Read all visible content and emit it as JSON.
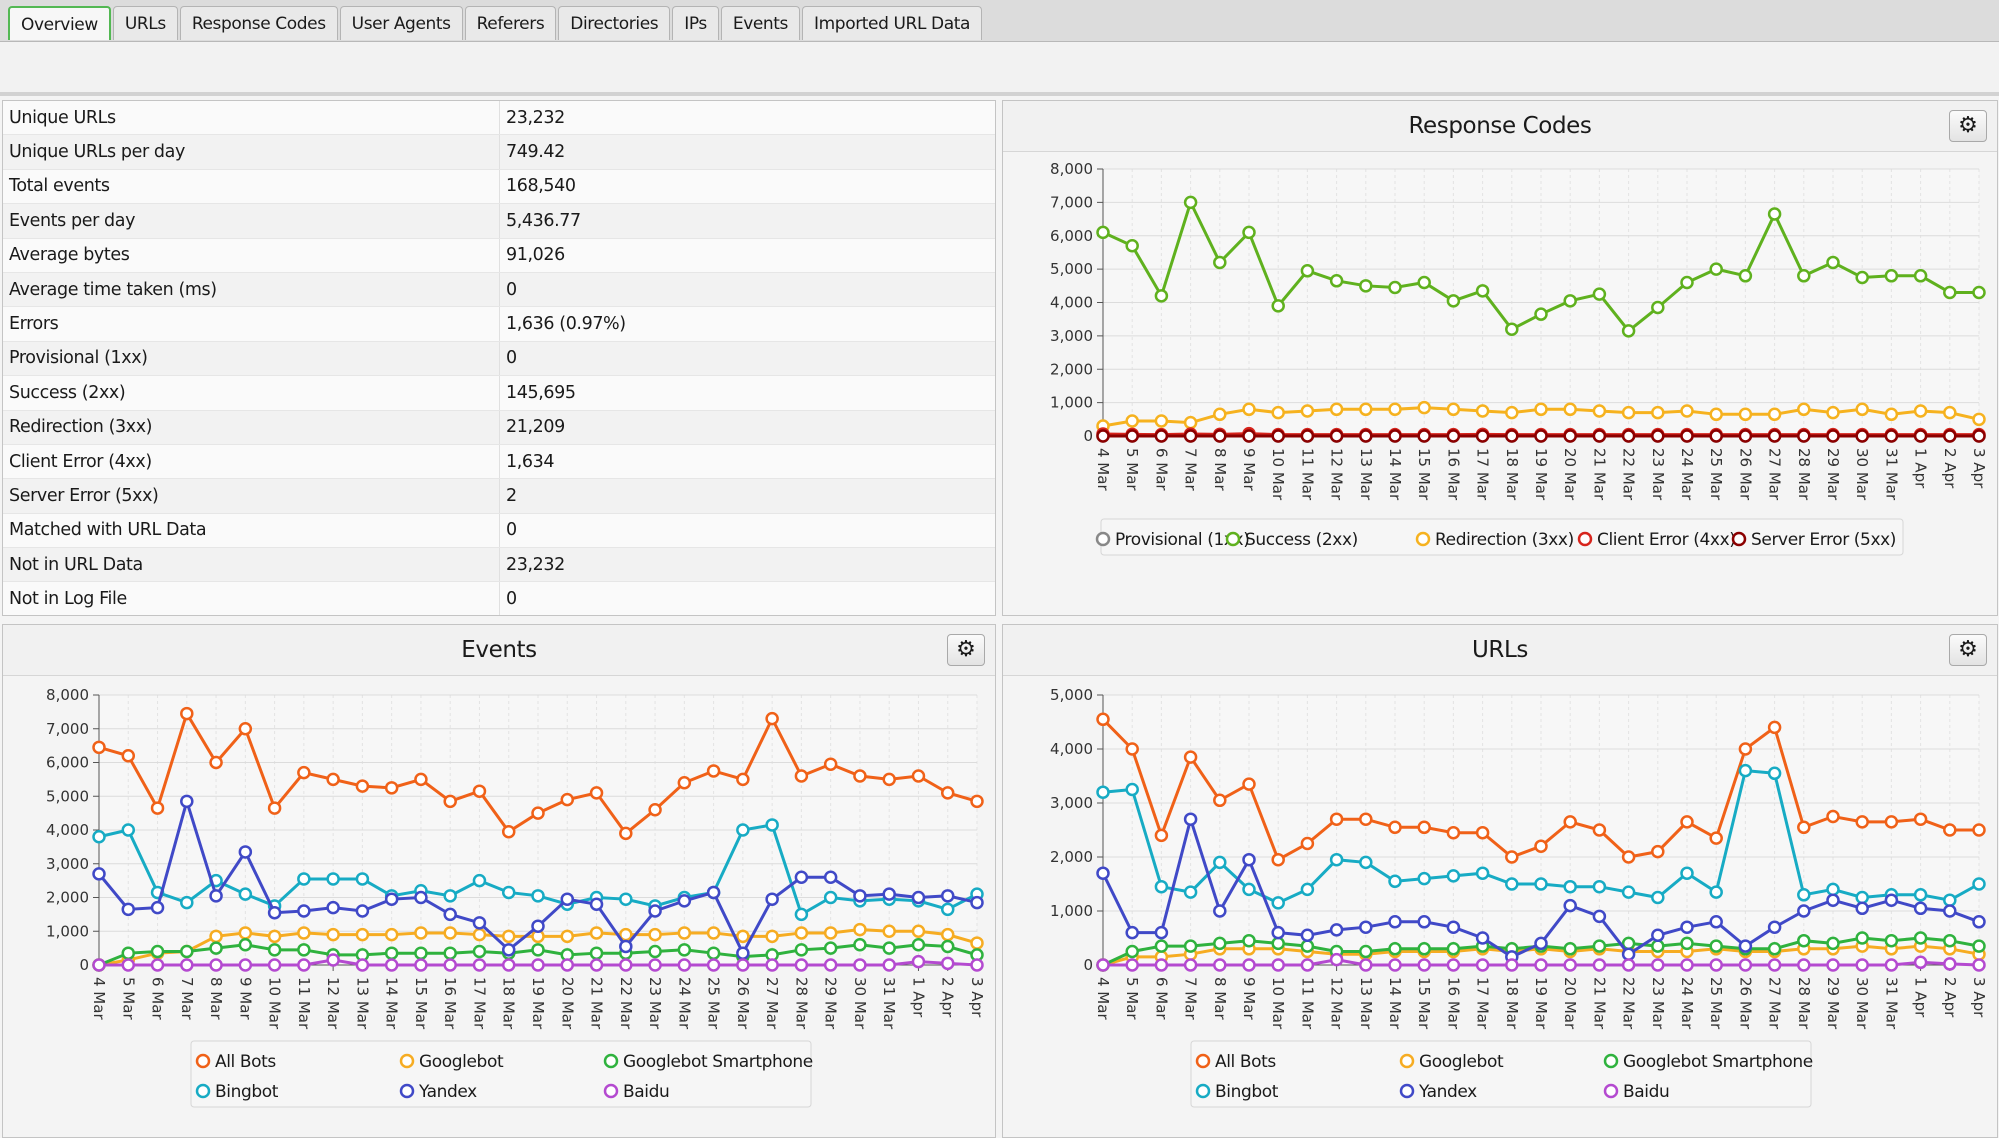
{
  "tabs": [
    {
      "label": "Overview",
      "active": true
    },
    {
      "label": "URLs"
    },
    {
      "label": "Response Codes"
    },
    {
      "label": "User Agents"
    },
    {
      "label": "Referers"
    },
    {
      "label": "Directories"
    },
    {
      "label": "IPs"
    },
    {
      "label": "Events"
    },
    {
      "label": "Imported URL Data"
    }
  ],
  "stats": [
    {
      "label": "Unique URLs",
      "value": "23,232"
    },
    {
      "label": "Unique URLs per day",
      "value": "749.42"
    },
    {
      "label": "Total events",
      "value": "168,540"
    },
    {
      "label": "Events per day",
      "value": "5,436.77"
    },
    {
      "label": "Average bytes",
      "value": "91,026"
    },
    {
      "label": "Average time taken (ms)",
      "value": "0"
    },
    {
      "label": "Errors",
      "value": "1,636 (0.97%)"
    },
    {
      "label": "Provisional (1xx)",
      "value": "0"
    },
    {
      "label": "Success (2xx)",
      "value": "145,695"
    },
    {
      "label": "Redirection (3xx)",
      "value": "21,209"
    },
    {
      "label": "Client Error (4xx)",
      "value": "1,634"
    },
    {
      "label": "Server Error (5xx)",
      "value": "2"
    },
    {
      "label": "Matched with URL Data",
      "value": "0"
    },
    {
      "label": "Not in URL Data",
      "value": "23,232"
    },
    {
      "label": "Not in Log File",
      "value": "0"
    }
  ],
  "gear_icon": "gear-icon",
  "chart_data": [
    {
      "id": "response-codes",
      "type": "line",
      "title": "Response Codes",
      "x": [
        "4 Mar",
        "5 Mar",
        "6 Mar",
        "7 Mar",
        "8 Mar",
        "9 Mar",
        "10 Mar",
        "11 Mar",
        "12 Mar",
        "13 Mar",
        "14 Mar",
        "15 Mar",
        "16 Mar",
        "17 Mar",
        "18 Mar",
        "19 Mar",
        "20 Mar",
        "21 Mar",
        "22 Mar",
        "23 Mar",
        "24 Mar",
        "25 Mar",
        "26 Mar",
        "27 Mar",
        "28 Mar",
        "29 Mar",
        "30 Mar",
        "31 Mar",
        "1 Apr",
        "2 Apr",
        "3 Apr"
      ],
      "ylim": [
        0,
        8000
      ],
      "yticks": [
        "0",
        "1,000",
        "2,000",
        "3,000",
        "4,000",
        "5,000",
        "6,000",
        "7,000",
        "8,000"
      ],
      "grid": true,
      "legend": "bottom",
      "series": [
        {
          "name": "Provisional (1xx)",
          "color": "#888888",
          "values": [
            0,
            0,
            0,
            0,
            0,
            0,
            0,
            0,
            0,
            0,
            0,
            0,
            0,
            0,
            0,
            0,
            0,
            0,
            0,
            0,
            0,
            0,
            0,
            0,
            0,
            0,
            0,
            0,
            0,
            0,
            0
          ]
        },
        {
          "name": "Success (2xx)",
          "color": "#5fb11e",
          "values": [
            6100,
            5700,
            4200,
            7000,
            5200,
            6100,
            3900,
            4950,
            4650,
            4500,
            4450,
            4600,
            4050,
            4350,
            3200,
            3650,
            4050,
            4250,
            3150,
            3850,
            4600,
            5000,
            4800,
            6650,
            4800,
            5200,
            4750,
            4800,
            4800,
            4300,
            4300
          ]
        },
        {
          "name": "Redirection (3xx)",
          "color": "#f6b21f",
          "values": [
            300,
            450,
            450,
            400,
            650,
            800,
            700,
            750,
            800,
            800,
            800,
            850,
            800,
            750,
            700,
            800,
            800,
            750,
            700,
            700,
            750,
            650,
            650,
            650,
            800,
            700,
            800,
            650,
            750,
            700,
            500
          ]
        },
        {
          "name": "Client Error (4xx)",
          "color": "#d7241c",
          "values": [
            60,
            50,
            40,
            60,
            50,
            70,
            40,
            40,
            40,
            40,
            40,
            40,
            40,
            50,
            40,
            40,
            40,
            40,
            40,
            40,
            40,
            40,
            40,
            40,
            40,
            40,
            40,
            40,
            40,
            40,
            40
          ]
        },
        {
          "name": "Server Error (5xx)",
          "color": "#8b0000",
          "values": [
            0,
            0,
            0,
            0,
            0,
            0,
            0,
            0,
            0,
            0,
            0,
            0,
            0,
            0,
            0,
            0,
            0,
            0,
            0,
            0,
            0,
            0,
            0,
            0,
            0,
            0,
            0,
            0,
            0,
            0,
            0
          ]
        }
      ]
    },
    {
      "id": "events",
      "type": "line",
      "title": "Events",
      "x": [
        "4 Mar",
        "5 Mar",
        "6 Mar",
        "7 Mar",
        "8 Mar",
        "9 Mar",
        "10 Mar",
        "11 Mar",
        "12 Mar",
        "13 Mar",
        "14 Mar",
        "15 Mar",
        "16 Mar",
        "17 Mar",
        "18 Mar",
        "19 Mar",
        "20 Mar",
        "21 Mar",
        "22 Mar",
        "23 Mar",
        "24 Mar",
        "25 Mar",
        "26 Mar",
        "27 Mar",
        "28 Mar",
        "29 Mar",
        "30 Mar",
        "31 Mar",
        "1 Apr",
        "2 Apr",
        "3 Apr"
      ],
      "ylim": [
        0,
        8000
      ],
      "yticks": [
        "0",
        "1,000",
        "2,000",
        "3,000",
        "4,000",
        "5,000",
        "6,000",
        "7,000",
        "8,000"
      ],
      "grid": true,
      "legend": "bottom",
      "series": [
        {
          "name": "All Bots",
          "color": "#f06118",
          "values": [
            6450,
            6200,
            4650,
            7450,
            6000,
            7000,
            4650,
            5700,
            5500,
            5300,
            5250,
            5500,
            4850,
            5150,
            3950,
            4500,
            4900,
            5100,
            3900,
            4600,
            5400,
            5750,
            5500,
            7300,
            5600,
            5950,
            5600,
            5500,
            5600,
            5100,
            4850
          ]
        },
        {
          "name": "Googlebot",
          "color": "#f6ac22",
          "values": [
            0,
            150,
            350,
            400,
            850,
            950,
            850,
            950,
            900,
            900,
            900,
            950,
            950,
            900,
            850,
            850,
            850,
            950,
            900,
            900,
            950,
            950,
            850,
            850,
            950,
            950,
            1050,
            1000,
            1000,
            900,
            650
          ]
        },
        {
          "name": "Googlebot Smartphone",
          "color": "#2fb23e",
          "values": [
            0,
            350,
            400,
            400,
            500,
            600,
            450,
            450,
            300,
            300,
            350,
            350,
            350,
            400,
            350,
            450,
            300,
            350,
            350,
            400,
            450,
            350,
            250,
            300,
            450,
            500,
            600,
            500,
            600,
            550,
            300
          ]
        },
        {
          "name": "Bingbot",
          "color": "#17abc4",
          "values": [
            3800,
            4000,
            2150,
            1850,
            2500,
            2100,
            1750,
            2550,
            2550,
            2550,
            2050,
            2200,
            2050,
            2500,
            2150,
            2050,
            1800,
            2000,
            1950,
            1750,
            2000,
            2150,
            4000,
            4150,
            1500,
            2000,
            1900,
            1950,
            1900,
            1650,
            2100
          ]
        },
        {
          "name": "Yandex",
          "color": "#4049c7",
          "values": [
            2700,
            1650,
            1700,
            4850,
            2050,
            3350,
            1550,
            1600,
            1700,
            1600,
            1950,
            2000,
            1500,
            1250,
            450,
            1150,
            1950,
            1800,
            550,
            1600,
            1900,
            2150,
            350,
            1950,
            2600,
            2600,
            2050,
            2100,
            2000,
            2050,
            1850
          ]
        },
        {
          "name": "Baidu",
          "color": "#b44ad0",
          "values": [
            0,
            0,
            0,
            0,
            0,
            0,
            0,
            0,
            150,
            0,
            0,
            0,
            0,
            0,
            0,
            0,
            0,
            0,
            0,
            0,
            0,
            0,
            0,
            0,
            0,
            0,
            0,
            0,
            100,
            50,
            0
          ]
        }
      ]
    },
    {
      "id": "urls",
      "type": "line",
      "title": "URLs",
      "x": [
        "4 Mar",
        "5 Mar",
        "6 Mar",
        "7 Mar",
        "8 Mar",
        "9 Mar",
        "10 Mar",
        "11 Mar",
        "12 Mar",
        "13 Mar",
        "14 Mar",
        "15 Mar",
        "16 Mar",
        "17 Mar",
        "18 Mar",
        "19 Mar",
        "20 Mar",
        "21 Mar",
        "22 Mar",
        "23 Mar",
        "24 Mar",
        "25 Mar",
        "26 Mar",
        "27 Mar",
        "28 Mar",
        "29 Mar",
        "30 Mar",
        "31 Mar",
        "1 Apr",
        "2 Apr",
        "3 Apr"
      ],
      "ylim": [
        0,
        5000
      ],
      "yticks": [
        "0",
        "1,000",
        "2,000",
        "3,000",
        "4,000",
        "5,000"
      ],
      "grid": true,
      "legend": "bottom",
      "series": [
        {
          "name": "All Bots",
          "color": "#f06118",
          "values": [
            4550,
            4000,
            2400,
            3850,
            3050,
            3350,
            1950,
            2250,
            2700,
            2700,
            2550,
            2550,
            2450,
            2450,
            2000,
            2200,
            2650,
            2500,
            2000,
            2100,
            2650,
            2350,
            4000,
            4400,
            2550,
            2750,
            2650,
            2650,
            2700,
            2500,
            2500
          ]
        },
        {
          "name": "Googlebot",
          "color": "#f6ac22",
          "values": [
            0,
            150,
            150,
            200,
            300,
            300,
            300,
            250,
            200,
            200,
            250,
            250,
            250,
            300,
            250,
            300,
            250,
            300,
            250,
            250,
            250,
            300,
            250,
            250,
            300,
            300,
            350,
            300,
            350,
            300,
            200
          ]
        },
        {
          "name": "Googlebot Smartphone",
          "color": "#2fb23e",
          "values": [
            0,
            250,
            350,
            350,
            400,
            450,
            400,
            350,
            250,
            250,
            300,
            300,
            300,
            350,
            300,
            350,
            300,
            350,
            400,
            350,
            400,
            350,
            300,
            300,
            450,
            400,
            500,
            450,
            500,
            450,
            350
          ]
        },
        {
          "name": "Bingbot",
          "color": "#17abc4",
          "values": [
            3200,
            3250,
            1450,
            1350,
            1900,
            1400,
            1150,
            1400,
            1950,
            1900,
            1550,
            1600,
            1650,
            1700,
            1500,
            1500,
            1450,
            1450,
            1350,
            1250,
            1700,
            1350,
            3600,
            3550,
            1300,
            1400,
            1250,
            1300,
            1300,
            1200,
            1500
          ]
        },
        {
          "name": "Yandex",
          "color": "#4049c7",
          "values": [
            1700,
            600,
            600,
            2700,
            1000,
            1950,
            600,
            550,
            650,
            700,
            800,
            800,
            700,
            500,
            150,
            400,
            1100,
            900,
            200,
            550,
            700,
            800,
            350,
            700,
            1000,
            1200,
            1050,
            1200,
            1050,
            1000,
            800
          ]
        },
        {
          "name": "Baidu",
          "color": "#b44ad0",
          "values": [
            0,
            0,
            0,
            0,
            0,
            0,
            0,
            0,
            100,
            0,
            0,
            0,
            0,
            0,
            0,
            0,
            0,
            0,
            0,
            0,
            0,
            0,
            0,
            0,
            0,
            0,
            0,
            0,
            50,
            20,
            0
          ]
        }
      ]
    }
  ]
}
